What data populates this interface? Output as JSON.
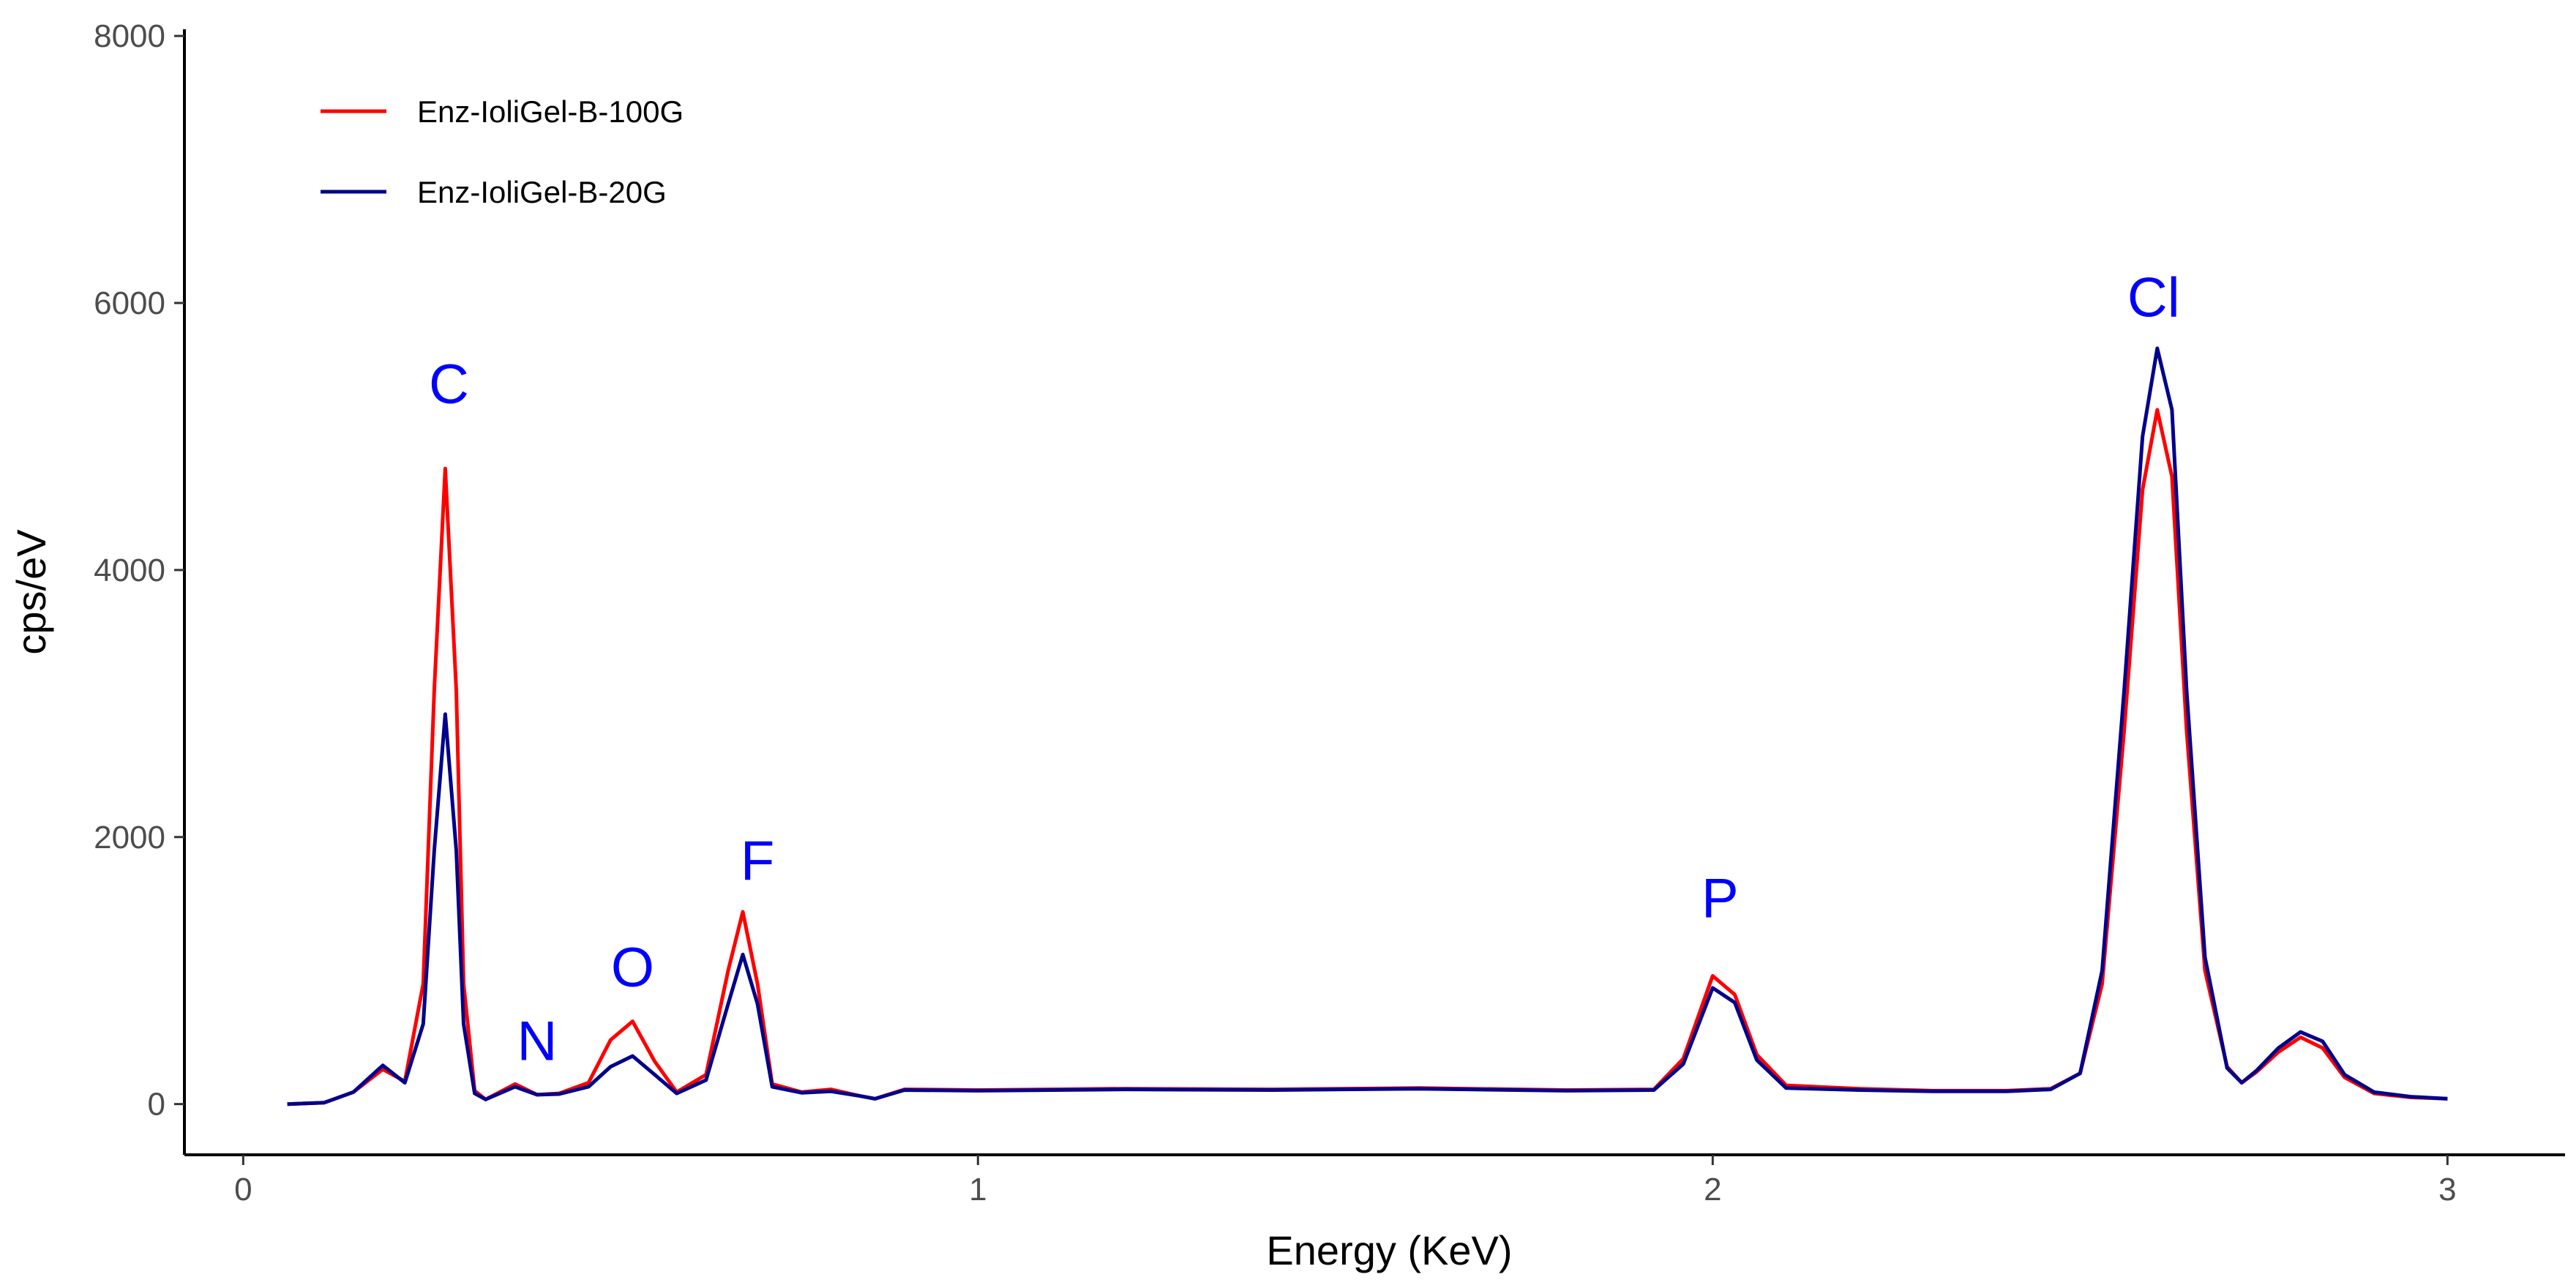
{
  "chart_data": {
    "type": "line",
    "title": "",
    "xlabel": "Energy (KeV)",
    "ylabel": "cps/eV",
    "xlim": [
      -0.08,
      3.16
    ],
    "ylim": [
      -380,
      8050
    ],
    "xticks": [
      0,
      1,
      2,
      3
    ],
    "yticks": [
      0,
      2000,
      4000,
      6000,
      8000
    ],
    "grid": false,
    "legend_position": "top-left",
    "annotation_color": "#0000ff",
    "annotations": [
      {
        "text": "C",
        "x": 0.28,
        "y": 5250
      },
      {
        "text": "N",
        "x": 0.4,
        "y": 330
      },
      {
        "text": "O",
        "x": 0.53,
        "y": 880
      },
      {
        "text": "F",
        "x": 0.7,
        "y": 1680
      },
      {
        "text": "P",
        "x": 2.01,
        "y": 1400
      },
      {
        "text": "Cl",
        "x": 2.6,
        "y": 5900
      }
    ],
    "series": [
      {
        "name": "Enz-IoliGel-B-100G",
        "color": "#ff0000",
        "x": [
          0.06,
          0.11,
          0.15,
          0.19,
          0.22,
          0.245,
          0.26,
          0.275,
          0.29,
          0.3,
          0.315,
          0.33,
          0.37,
          0.4,
          0.43,
          0.47,
          0.5,
          0.53,
          0.56,
          0.59,
          0.63,
          0.66,
          0.68,
          0.7,
          0.72,
          0.76,
          0.8,
          0.84,
          0.86,
          0.9,
          1.0,
          1.2,
          1.4,
          1.6,
          1.8,
          1.92,
          1.96,
          2.0,
          2.03,
          2.06,
          2.1,
          2.2,
          2.3,
          2.4,
          2.46,
          2.5,
          2.53,
          2.56,
          2.585,
          2.605,
          2.625,
          2.645,
          2.67,
          2.7,
          2.72,
          2.74,
          2.77,
          2.8,
          2.83,
          2.86,
          2.9,
          2.95,
          3.0
        ],
        "y": [
          0,
          10,
          90,
          260,
          170,
          900,
          3100,
          4760,
          3100,
          900,
          100,
          35,
          150,
          70,
          80,
          160,
          480,
          620,
          320,
          90,
          220,
          1000,
          1440,
          900,
          150,
          90,
          110,
          60,
          40,
          110,
          105,
          115,
          110,
          120,
          105,
          110,
          340,
          960,
          820,
          370,
          140,
          115,
          100,
          100,
          115,
          230,
          900,
          2800,
          4600,
          5200,
          4700,
          2800,
          1000,
          280,
          160,
          240,
          390,
          500,
          420,
          200,
          80,
          50,
          40
        ]
      },
      {
        "name": "Enz-IoliGel-B-20G",
        "color": "#00008b",
        "x": [
          0.06,
          0.11,
          0.15,
          0.19,
          0.22,
          0.245,
          0.26,
          0.275,
          0.29,
          0.3,
          0.315,
          0.33,
          0.37,
          0.4,
          0.43,
          0.47,
          0.5,
          0.53,
          0.56,
          0.59,
          0.63,
          0.66,
          0.68,
          0.7,
          0.72,
          0.76,
          0.8,
          0.84,
          0.86,
          0.9,
          1.0,
          1.2,
          1.4,
          1.6,
          1.8,
          1.92,
          1.96,
          2.0,
          2.03,
          2.06,
          2.1,
          2.2,
          2.3,
          2.4,
          2.46,
          2.5,
          2.53,
          2.56,
          2.585,
          2.605,
          2.625,
          2.645,
          2.67,
          2.7,
          2.72,
          2.74,
          2.77,
          2.8,
          2.83,
          2.86,
          2.9,
          2.95,
          3.0
        ],
        "y": [
          0,
          10,
          90,
          290,
          160,
          600,
          1900,
          2920,
          1900,
          600,
          80,
          35,
          130,
          70,
          75,
          130,
          280,
          360,
          220,
          80,
          180,
          750,
          1120,
          750,
          130,
          85,
          95,
          60,
          40,
          105,
          100,
          110,
          105,
          115,
          100,
          105,
          300,
          870,
          760,
          330,
          120,
          105,
          95,
          95,
          110,
          230,
          1000,
          3100,
          5000,
          5660,
          5200,
          3100,
          1100,
          270,
          160,
          250,
          420,
          540,
          470,
          220,
          90,
          55,
          40
        ]
      }
    ]
  }
}
